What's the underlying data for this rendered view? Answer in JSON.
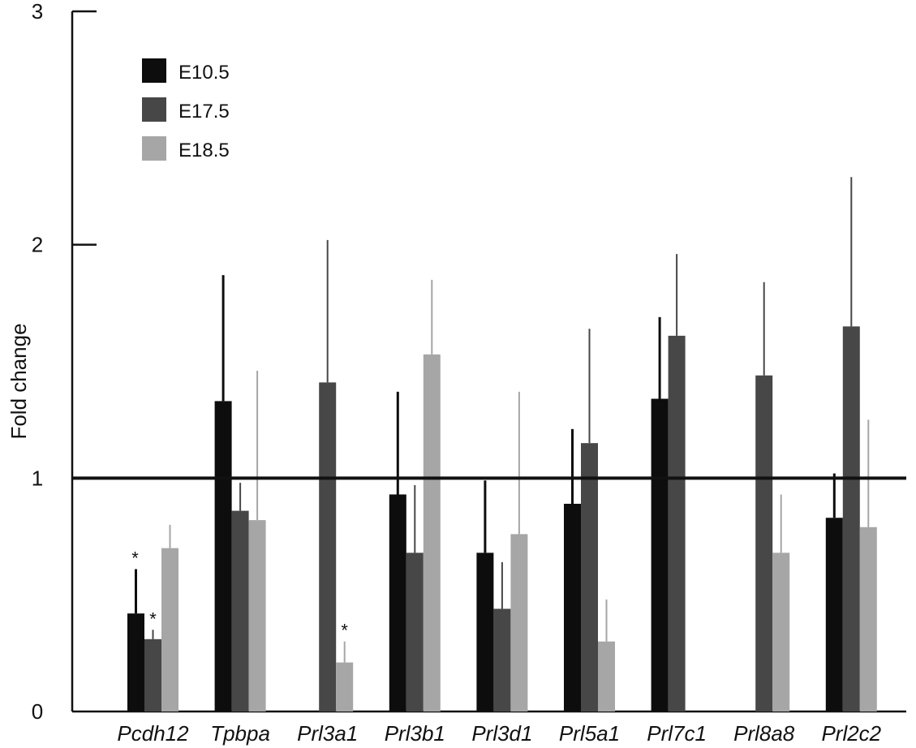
{
  "chart_data": {
    "type": "bar",
    "title": "",
    "xlabel": "",
    "ylabel": "Fold change",
    "ylim": [
      0,
      3
    ],
    "yticks": [
      "0",
      "1",
      "2",
      "3"
    ],
    "reference_line": 1,
    "legend_position": "top-left",
    "categories": [
      "Pcdh12",
      "Tpbpa",
      "Prl3a1",
      "Prl3b1",
      "Prl3d1",
      "Prl5a1",
      "Prl7c1",
      "Prl8a8",
      "Prl2c2"
    ],
    "series": [
      {
        "name": "E10.5",
        "color": "#0d0d0d",
        "values": [
          0.42,
          1.33,
          null,
          0.93,
          0.68,
          0.89,
          1.34,
          null,
          0.83
        ],
        "errors": [
          0.19,
          0.54,
          null,
          0.44,
          0.31,
          0.32,
          0.35,
          null,
          0.19
        ]
      },
      {
        "name": "E17.5",
        "color": "#474747",
        "values": [
          0.31,
          0.86,
          1.41,
          0.68,
          0.44,
          1.15,
          1.61,
          1.44,
          1.65
        ],
        "errors": [
          0.04,
          0.12,
          0.61,
          0.29,
          0.2,
          0.49,
          0.35,
          0.4,
          0.64
        ]
      },
      {
        "name": "E18.5",
        "color": "#a6a6a6",
        "values": [
          0.7,
          0.82,
          0.21,
          1.53,
          0.76,
          0.3,
          null,
          0.68,
          0.79
        ],
        "errors": [
          0.1,
          0.64,
          0.09,
          0.32,
          0.61,
          0.18,
          null,
          0.25,
          0.46
        ]
      }
    ],
    "annotations": [
      {
        "text": "*",
        "category": "Pcdh12",
        "series": "E10.5"
      },
      {
        "text": "*",
        "category": "Pcdh12",
        "series": "E17.5"
      },
      {
        "text": "*",
        "category": "Prl3a1",
        "series": "E18.5"
      }
    ]
  }
}
